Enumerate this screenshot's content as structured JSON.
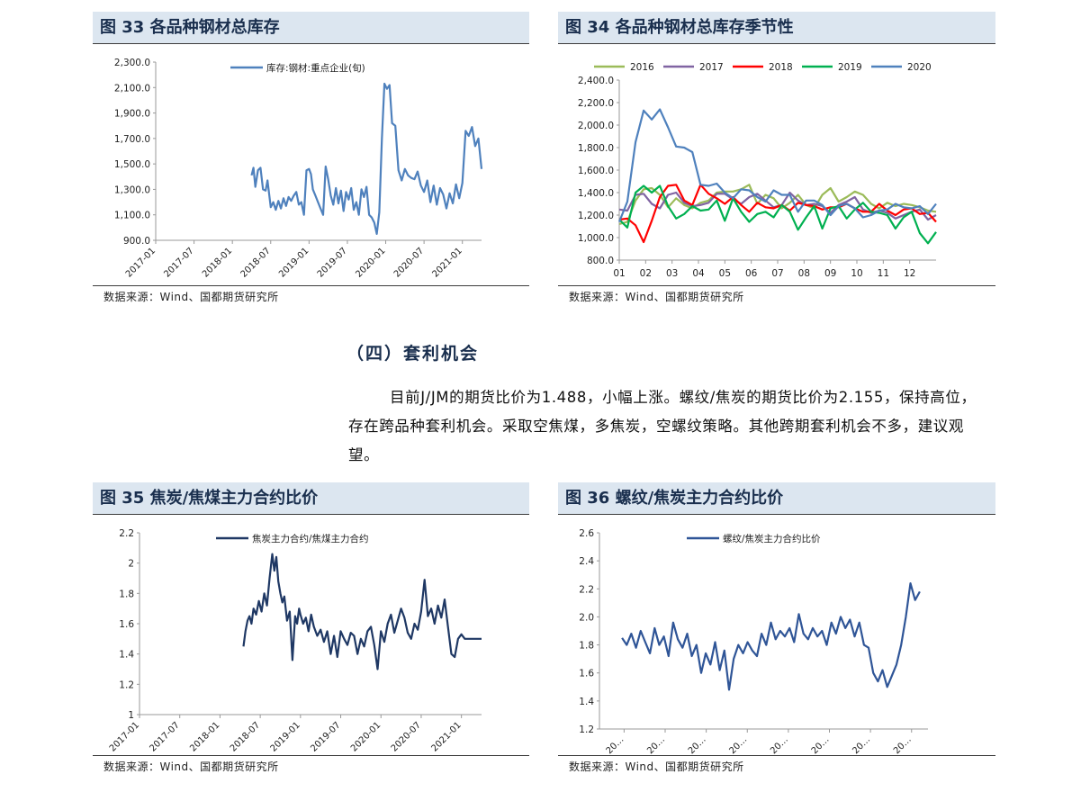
{
  "figures": [
    {
      "title": "图 33 各品种钢材总库存",
      "source": "数据来源：Wind、国都期货研究所",
      "chart_data": {
        "type": "line",
        "y_ticks": [
          "2,300.0",
          "2,100.0",
          "1,900.0",
          "1,700.0",
          "1,500.0",
          "1,300.0",
          "1,100.0",
          "900.0"
        ],
        "ylim": [
          900,
          2300
        ],
        "x_ticks": [
          "2017-01",
          "2017-07",
          "2018-01",
          "2018-07",
          "2019-01",
          "2019-07",
          "2020-01",
          "2020-07",
          "2021-01"
        ],
        "x_start": "2017-01",
        "series": [
          {
            "name": "库存:钢材:重点企业(旬)",
            "color": "#4f81bd",
            "x_months": [
              15.0,
              15.3,
              15.6,
              16.0,
              16.4,
              16.8,
              17.2,
              17.5,
              18.0,
              18.4,
              18.8,
              19.2,
              19.6,
              20.0,
              20.4,
              20.8,
              21.2,
              21.6,
              22.0,
              22.4,
              22.8,
              23.2,
              23.6,
              24.0,
              24.3,
              24.6,
              25.0,
              25.4,
              25.8,
              26.2,
              26.6,
              27.0,
              27.4,
              27.8,
              28.2,
              28.6,
              29.0,
              29.4,
              29.8,
              30.2,
              30.6,
              31.0,
              31.4,
              31.8,
              32.2,
              32.6,
              33.0,
              33.4,
              33.8,
              34.2,
              34.6,
              35.0,
              35.4,
              35.8,
              36.2,
              36.6,
              37.0,
              37.5,
              38.0,
              38.5,
              39.0,
              39.5,
              40.0,
              40.5,
              41.0,
              41.5,
              42.0,
              42.5,
              43.0,
              43.5,
              44.0,
              44.5,
              45.0,
              45.5,
              46.0,
              46.5,
              47.0,
              47.5,
              48.0,
              48.5,
              49.0,
              49.5,
              50.0,
              50.5,
              51.0
            ],
            "values": [
              1410,
              1470,
              1320,
              1450,
              1470,
              1300,
              1290,
              1370,
              1160,
              1200,
              1140,
              1210,
              1150,
              1230,
              1170,
              1240,
              1210,
              1250,
              1280,
              1180,
              1200,
              1100,
              1450,
              1460,
              1420,
              1300,
              1250,
              1200,
              1150,
              1100,
              1480,
              1380,
              1250,
              1180,
              1310,
              1190,
              1290,
              1130,
              1280,
              1220,
              1310,
              1140,
              1200,
              1100,
              1300,
              1240,
              1320,
              1100,
              1080,
              1040,
              950,
              1120,
              1700,
              2130,
              2090,
              2120,
              1820,
              1800,
              1450,
              1370,
              1460,
              1410,
              1390,
              1380,
              1440,
              1330,
              1280,
              1370,
              1200,
              1330,
              1180,
              1310,
              1260,
              1150,
              1270,
              1190,
              1340,
              1230,
              1350,
              1760,
              1720,
              1790,
              1640,
              1700,
              1460
            ]
          }
        ]
      }
    },
    {
      "title": "图 34 各品种钢材总库存季节性",
      "source": "数据来源：Wind、国都期货研究所",
      "chart_data": {
        "type": "line",
        "y_ticks": [
          "2,400.0",
          "2,200.0",
          "2,000.0",
          "1,800.0",
          "1,600.0",
          "1,400.0",
          "1,200.0",
          "1,000.0",
          "800.0"
        ],
        "ylim": [
          800,
          2400
        ],
        "x_ticks": [
          "01",
          "02",
          "03",
          "04",
          "05",
          "06",
          "07",
          "08",
          "09",
          "10",
          "11",
          "12"
        ],
        "series": [
          {
            "name": "2016",
            "color": "#9bbb59",
            "values": [
              1120,
              1140,
              1330,
              1430,
              1440,
              1380,
              1270,
              1350,
              1290,
              1260,
              1310,
              1330,
              1400,
              1410,
              1410,
              1430,
              1470,
              1300,
              1380,
              1350,
              1260,
              1310,
              1380,
              1290,
              1260,
              1380,
              1440,
              1320,
              1360,
              1410,
              1380,
              1300,
              1260,
              1310,
              1280,
              1300,
              1290,
              1270,
              1240,
              1230
            ]
          },
          {
            "name": "2017",
            "color": "#8064a2",
            "values": [
              1250,
              1240,
              1380,
              1390,
              1300,
              1260,
              1380,
              1400,
              1310,
              1280,
              1290,
              1310,
              1390,
              1390,
              1340,
              1300,
              1360,
              1390,
              1330,
              1270,
              1290,
              1400,
              1330,
              1290,
              1300,
              1280,
              1220,
              1290,
              1320,
              1360,
              1250,
              1220,
              1240,
              1220,
              1170,
              1200,
              1230,
              1250,
              1160,
              1200
            ]
          },
          {
            "name": "2018",
            "color": "#ff0000",
            "values": [
              1160,
              1170,
              1110,
              960,
              1150,
              1360,
              1460,
              1470,
              1330,
              1290,
              1470,
              1390,
              1350,
              1300,
              1360,
              1290,
              1230,
              1310,
              1270,
              1260,
              1290,
              1240,
              1310,
              1290,
              1280,
              1250,
              1270,
              1270,
              1300,
              1260,
              1230,
              1230,
              1300,
              1240,
              1200,
              1250,
              1260,
              1210,
              1220,
              1140
            ]
          },
          {
            "name": "2019",
            "color": "#00b050",
            "values": [
              1160,
              1090,
              1400,
              1460,
              1400,
              1460,
              1280,
              1170,
              1210,
              1280,
              1240,
              1250,
              1330,
              1150,
              1350,
              1230,
              1140,
              1210,
              1230,
              1180,
              1290,
              1230,
              1070,
              1180,
              1280,
              1080,
              1260,
              1280,
              1170,
              1250,
              1310,
              1230,
              1220,
              1200,
              1080,
              1180,
              1230,
              1040,
              950,
              1050
            ]
          },
          {
            "name": "2020",
            "color": "#4f81bd",
            "values": [
              1140,
              1320,
              1850,
              2130,
              2050,
              2140,
              1980,
              1810,
              1800,
              1760,
              1470,
              1460,
              1480,
              1400,
              1350,
              1430,
              1420,
              1360,
              1320,
              1420,
              1380,
              1380,
              1230,
              1330,
              1330,
              1290,
              1200,
              1280,
              1300,
              1260,
              1180,
              1200,
              1240,
              1250,
              1300,
              1270,
              1260,
              1280,
              1210,
              1300
            ]
          }
        ]
      }
    },
    {
      "title": "图 35 焦炭/焦煤主力合约比价",
      "source": "数据来源：Wind、国都期货研究所",
      "chart_data": {
        "type": "line",
        "y_ticks": [
          "2.2",
          "2",
          "1.8",
          "1.6",
          "1.4",
          "1.2",
          "1"
        ],
        "ylim": [
          1,
          2.2
        ],
        "x_ticks": [
          "2017-01",
          "2017-07",
          "2018-01",
          "2018-07",
          "2019-01",
          "2019-07",
          "2020-01",
          "2020-07",
          "2021-01"
        ],
        "x_start": "2017-01",
        "series": [
          {
            "name": "焦炭主力合约/焦煤主力合约",
            "color": "#1f3864",
            "x_months": [
              15.5,
              15.8,
              16.1,
              16.4,
              16.7,
              17.0,
              17.4,
              17.8,
              18.2,
              18.6,
              19.0,
              19.4,
              19.8,
              20.1,
              20.4,
              20.7,
              21.0,
              21.3,
              21.6,
              22.0,
              22.4,
              22.8,
              23.2,
              23.5,
              23.8,
              24.0,
              24.4,
              24.8,
              25.2,
              25.6,
              26.0,
              26.5,
              27.0,
              27.5,
              28.0,
              28.5,
              29.0,
              29.5,
              30.0,
              30.5,
              31.0,
              31.5,
              32.0,
              32.5,
              33.0,
              33.5,
              34.0,
              34.5,
              35.0,
              35.5,
              36.0,
              36.5,
              37.0,
              37.5,
              38.0,
              38.5,
              39.0,
              39.5,
              40.0,
              40.5,
              41.0,
              41.5,
              42.0,
              42.5,
              43.0,
              43.5,
              44.0,
              44.5,
              45.0,
              45.5,
              46.0,
              46.5,
              47.0,
              47.5,
              48.0,
              48.5,
              49.0,
              49.5,
              50.0,
              50.5,
              51.0
            ],
            "values": [
              1.45,
              1.55,
              1.62,
              1.65,
              1.6,
              1.7,
              1.66,
              1.75,
              1.68,
              1.8,
              1.72,
              1.9,
              2.06,
              1.95,
              2.04,
              1.88,
              1.8,
              1.74,
              1.78,
              1.62,
              1.68,
              1.36,
              1.65,
              1.6,
              1.7,
              1.66,
              1.6,
              1.64,
              1.55,
              1.66,
              1.58,
              1.52,
              1.56,
              1.48,
              1.55,
              1.4,
              1.52,
              1.38,
              1.55,
              1.5,
              1.46,
              1.54,
              1.52,
              1.4,
              1.5,
              1.45,
              1.55,
              1.58,
              1.46,
              1.3,
              1.55,
              1.48,
              1.6,
              1.66,
              1.54,
              1.62,
              1.7,
              1.64,
              1.54,
              1.5,
              1.6,
              1.56,
              1.68,
              1.89,
              1.65,
              1.7,
              1.6,
              1.72,
              1.64,
              1.76,
              1.58,
              1.4,
              1.38,
              1.5,
              1.53,
              1.5,
              1.5,
              1.5,
              1.5,
              1.5,
              1.5
            ]
          }
        ]
      }
    },
    {
      "title": "图 36 螺纹/焦炭主力合约比价",
      "source": "数据来源：Wind、国都期货研究所",
      "chart_data": {
        "type": "line",
        "y_ticks": [
          "2.6",
          "2.4",
          "2.2",
          "2.0",
          "1.8",
          "1.6",
          "1.4",
          "1.2"
        ],
        "ylim": [
          1.2,
          2.6
        ],
        "x_ticks": [
          "20…",
          "20…",
          "20…",
          "20…",
          "20…",
          "20…",
          "20…",
          "20…"
        ],
        "series": [
          {
            "name": "螺纹/焦炭主力合约比价",
            "color": "#2f5597",
            "values": [
              1.85,
              1.8,
              1.88,
              1.78,
              1.9,
              1.82,
              1.74,
              1.92,
              1.8,
              1.86,
              1.72,
              1.96,
              1.84,
              1.78,
              1.88,
              1.72,
              1.8,
              1.6,
              1.74,
              1.66,
              1.82,
              1.62,
              1.76,
              1.48,
              1.7,
              1.8,
              1.74,
              1.82,
              1.76,
              1.72,
              1.88,
              1.8,
              1.96,
              1.84,
              1.9,
              1.86,
              1.92,
              1.82,
              2.02,
              1.88,
              1.84,
              1.92,
              1.86,
              1.9,
              1.8,
              1.96,
              1.88,
              2.0,
              1.92,
              1.98,
              1.86,
              1.96,
              1.8,
              1.78,
              1.6,
              1.54,
              1.62,
              1.5,
              1.58,
              1.66,
              1.8,
              2.0,
              2.24,
              2.12,
              2.18
            ]
          }
        ]
      }
    }
  ],
  "section": {
    "heading": "（四）套利机会",
    "paragraph": "目前J/JM的期货比价为1.488，小幅上涨。螺纹/焦炭的期货比价为2.155，保持高位，存在跨品种套利机会。采取空焦煤，多焦炭，空螺纹策略。其他跨期套利机会不多，建议观望。"
  }
}
